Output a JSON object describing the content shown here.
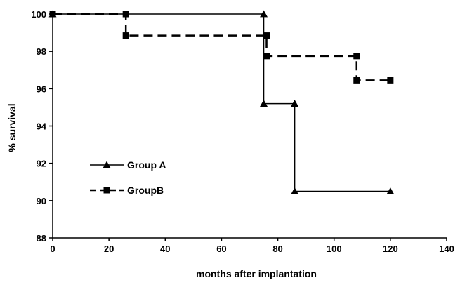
{
  "chart_data": {
    "type": "line",
    "step": true,
    "title": "",
    "xlabel": "months after implantation",
    "ylabel": "% survival",
    "xlim": [
      0,
      140
    ],
    "ylim": [
      88,
      100
    ],
    "x_ticks": [
      0,
      20,
      40,
      60,
      80,
      100,
      120,
      140
    ],
    "y_ticks": [
      88,
      90,
      92,
      94,
      96,
      98,
      100
    ],
    "grid": false,
    "legend_position": "left",
    "series": [
      {
        "name": "Group A",
        "marker": "triangle",
        "line_style": "solid",
        "color": "#000000",
        "x": [
          0,
          75,
          75,
          86,
          86,
          120
        ],
        "y": [
          100,
          100,
          95.2,
          95.2,
          90.5,
          90.5
        ]
      },
      {
        "name": "GroupB",
        "marker": "square",
        "line_style": "dashed",
        "color": "#000000",
        "x": [
          0,
          26,
          26,
          76,
          76,
          108,
          108,
          120
        ],
        "y": [
          100,
          100,
          98.85,
          98.85,
          97.75,
          97.75,
          96.45,
          96.45
        ]
      }
    ]
  }
}
